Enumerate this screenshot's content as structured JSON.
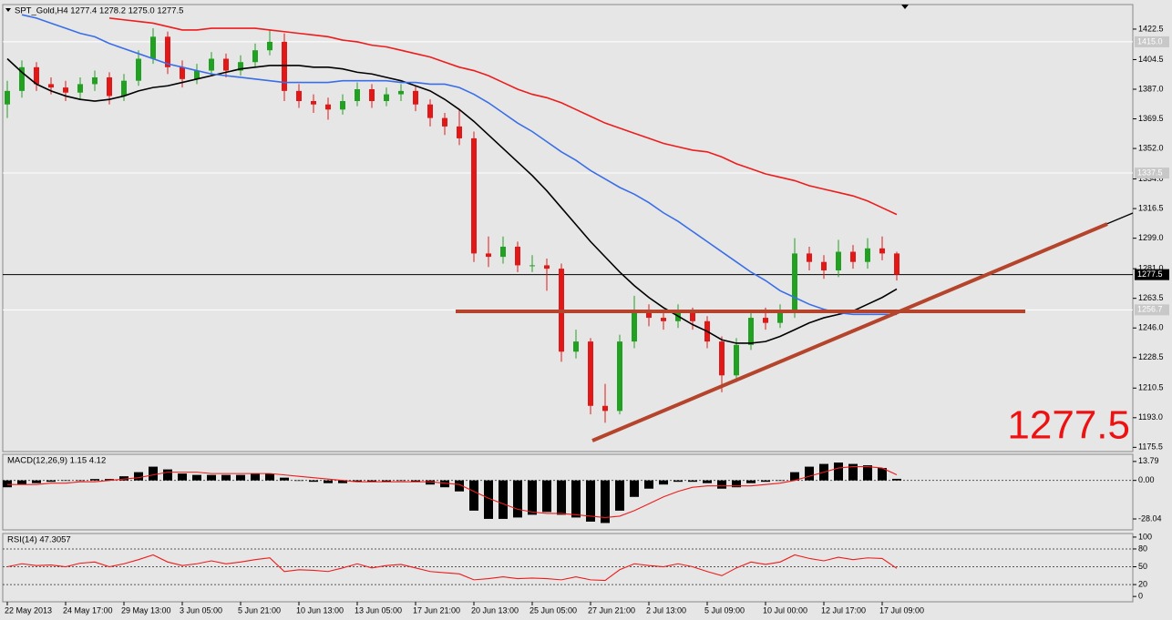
{
  "price_label": "1277.5",
  "chart_data": [
    {
      "type": "candlestick",
      "title": "SPT_Gold,H4  1277.4 1278.2 1275.0 1277.5",
      "categories": [
        "22 May 2013",
        null,
        null,
        null,
        "24 May 17:00",
        null,
        null,
        null,
        "29 May 13:00",
        null,
        null,
        null,
        "3 Jun 05:00",
        null,
        null,
        null,
        "5 Jun 21:00",
        null,
        null,
        null,
        "10 Jun 13:00",
        null,
        null,
        null,
        "13 Jun 05:00",
        null,
        null,
        null,
        "17 Jun 21:00",
        null,
        null,
        null,
        "20 Jun 13:00",
        null,
        null,
        null,
        "25 Jun 05:00",
        null,
        null,
        null,
        "27 Jun 21:00",
        null,
        null,
        null,
        "2 Jul 13:00",
        null,
        null,
        null,
        "5 Jul 09:00",
        null,
        null,
        null,
        "10 Jul 00:00",
        null,
        null,
        null,
        "12 Jul 17:00",
        null,
        null,
        null,
        "17 Jul 09:00",
        null
      ],
      "open": [
        1378,
        1386,
        1400,
        1390,
        1388,
        1385,
        1390,
        1394,
        1383,
        1392,
        1405,
        1418,
        1400,
        1393,
        1398,
        1405,
        1398,
        1403,
        1410,
        1415,
        1386,
        1380,
        1378,
        1375,
        1380,
        1387,
        1380,
        1384,
        1386,
        1378,
        1370,
        1365,
        1358,
        1290,
        1288,
        1294,
        1283,
        1283,
        1281,
        1232,
        1238,
        1200,
        1197,
        1238,
        1256,
        1252,
        1250,
        1255,
        1250,
        1238,
        1218,
        1236,
        1252,
        1249,
        1256,
        1290,
        1285,
        1280,
        1291,
        1285,
        1293,
        1290
      ],
      "high": [
        1392,
        1404,
        1403,
        1394,
        1392,
        1394,
        1398,
        1397,
        1396,
        1410,
        1423,
        1421,
        1404,
        1402,
        1409,
        1408,
        1407,
        1414,
        1422,
        1420,
        1390,
        1384,
        1382,
        1384,
        1391,
        1390,
        1388,
        1390,
        1389,
        1381,
        1373,
        1375,
        1362,
        1300,
        1300,
        1297,
        1289,
        1287,
        1284,
        1245,
        1240,
        1213,
        1242,
        1265,
        1260,
        1257,
        1260,
        1258,
        1253,
        1241,
        1240,
        1255,
        1258,
        1260,
        1299,
        1294,
        1289,
        1298,
        1295,
        1299,
        1300,
        1291
      ],
      "low": [
        1370,
        1382,
        1386,
        1384,
        1380,
        1381,
        1386,
        1378,
        1380,
        1389,
        1402,
        1396,
        1388,
        1390,
        1395,
        1394,
        1395,
        1400,
        1407,
        1380,
        1376,
        1373,
        1369,
        1372,
        1377,
        1376,
        1377,
        1380,
        1374,
        1365,
        1360,
        1354,
        1285,
        1282,
        1284,
        1279,
        1279,
        1268,
        1226,
        1228,
        1195,
        1190,
        1195,
        1234,
        1247,
        1245,
        1246,
        1245,
        1234,
        1208,
        1214,
        1233,
        1245,
        1246,
        1252,
        1280,
        1275,
        1276,
        1281,
        1281,
        1286,
        1274
      ],
      "close": [
        1386,
        1400,
        1390,
        1388,
        1385,
        1390,
        1394,
        1383,
        1392,
        1405,
        1418,
        1400,
        1393,
        1398,
        1405,
        1398,
        1403,
        1410,
        1415,
        1386,
        1380,
        1378,
        1375,
        1380,
        1387,
        1380,
        1384,
        1386,
        1378,
        1370,
        1365,
        1358,
        1290,
        1288,
        1294,
        1283,
        1283,
        1281,
        1232,
        1238,
        1200,
        1197,
        1238,
        1256,
        1252,
        1250,
        1255,
        1250,
        1238,
        1218,
        1236,
        1252,
        1249,
        1256,
        1290,
        1285,
        1280,
        1291,
        1285,
        1293,
        1290,
        1277.5
      ],
      "up_color": "#22a022",
      "down_color": "#e01818",
      "series": [
        {
          "color": "#000000",
          "values": [
            1405,
            1397,
            1390,
            1386,
            1383,
            1381,
            1380,
            1381,
            1383,
            1386,
            1388,
            1389,
            1391,
            1393,
            1395,
            1397,
            1399,
            1400,
            1401,
            1401,
            1401,
            1400,
            1400,
            1399,
            1397,
            1396,
            1394,
            1392,
            1389,
            1386,
            1381,
            1375,
            1368,
            1360,
            1352,
            1344,
            1336,
            1327,
            1317,
            1307,
            1297,
            1288,
            1279,
            1271,
            1264,
            1258,
            1253,
            1248,
            1244,
            1239,
            1237,
            1237,
            1238,
            1241,
            1245,
            1249,
            1252,
            1254,
            1256,
            1260,
            1264,
            1269
          ]
        },
        {
          "color": "#3a6ee8",
          "values": [
            null,
            1431,
            1429,
            1426,
            1423,
            1420,
            1418,
            1414,
            1411,
            1408,
            1405,
            1402,
            1400,
            1398,
            1396,
            1395,
            1394,
            1393,
            1392,
            1391,
            1391,
            1391,
            1391,
            1392,
            1392,
            1392,
            1392,
            1391,
            1391,
            1390,
            1390,
            1388,
            1384,
            1379,
            1373,
            1367,
            1362,
            1356,
            1350,
            1345,
            1339,
            1334,
            1329,
            1325,
            1320,
            1314,
            1309,
            1303,
            1297,
            1291,
            1285,
            1279,
            1274,
            1268,
            1264,
            1260,
            1257,
            1255,
            1254,
            1254,
            1254,
            1254
          ]
        },
        {
          "color": "#ee1c1c",
          "values": [
            null,
            null,
            null,
            null,
            null,
            null,
            null,
            1429,
            1428,
            1427,
            1426,
            1424,
            1422,
            1422,
            1423,
            1423,
            1423,
            1423,
            1422,
            1421,
            1420,
            1419,
            1418,
            1416,
            1415,
            1413,
            1412,
            1410,
            1408,
            1406,
            1403,
            1400,
            1398,
            1395,
            1391,
            1387,
            1384,
            1382,
            1379,
            1375,
            1371,
            1367,
            1364,
            1361,
            1358,
            1355,
            1353,
            1351,
            1350,
            1347,
            1343,
            1340,
            1337,
            1335,
            1333,
            1330,
            1328,
            1326,
            1324,
            1321,
            1317,
            1313
          ]
        }
      ],
      "ylim": [
        1173,
        1437
      ],
      "yticks": [
        1422.5,
        1404.5,
        {
          "value": 1387,
          "label": "1387.0"
        },
        1369.5,
        {
          "value": 1352,
          "label": "1352.0"
        },
        {
          "value": 1334,
          "label": "1334.0"
        },
        1316.5,
        {
          "value": 1299,
          "label": "1299.0"
        },
        {
          "value": 1281,
          "label": "1281.0"
        },
        1263.5,
        {
          "value": 1246,
          "label": "1246.0"
        },
        1228.5,
        1210.5,
        {
          "value": 1193,
          "label": "1193.0"
        },
        1175.5
      ],
      "hlines": [
        {
          "value": 1415,
          "label": "1415.0"
        },
        1337.5,
        1277.5,
        1256.7
      ],
      "hline_colors": [
        "#ffffff",
        "#ffffff",
        "#000000",
        "#ffffff"
      ]
    },
    {
      "type": "bar",
      "title": "MACD(12,26,9) 1.15 4.12",
      "series": [
        {
          "type": "bar",
          "color": "#000000",
          "values": [
            -5,
            -3,
            -2,
            -1,
            0,
            0,
            1,
            1,
            3,
            6,
            10,
            8,
            5,
            4,
            4,
            4,
            4,
            5,
            5,
            2,
            0,
            -1,
            -2,
            -2,
            -1,
            -1,
            -1,
            0,
            -1,
            -3,
            -5,
            -8,
            -22,
            -28,
            -28,
            -27,
            -25,
            -23,
            -25,
            -27,
            -30,
            -31,
            -22,
            -12,
            -6,
            -3,
            -1,
            -1,
            -2,
            -6,
            -5,
            -2,
            -1,
            0,
            6,
            10,
            12,
            13,
            12,
            11,
            9,
            1.15
          ]
        },
        {
          "type": "line",
          "color": "#ee1c1c",
          "values": [
            -3,
            -3,
            -3,
            -2,
            -2,
            -1,
            -1,
            0,
            1,
            2,
            4,
            6,
            6,
            6,
            5,
            5,
            5,
            5,
            5,
            4,
            3,
            2,
            1,
            0,
            -1,
            -1,
            -1,
            -1,
            -1,
            -1,
            -2,
            -3,
            -8,
            -13,
            -17,
            -21,
            -23,
            -24,
            -24,
            -25,
            -26,
            -27,
            -26,
            -22,
            -17,
            -12,
            -8,
            -5,
            -4,
            -4,
            -4,
            -4,
            -3,
            -2,
            0,
            3,
            6,
            9,
            10,
            10,
            9,
            4.12
          ]
        }
      ],
      "ylim": [
        -36,
        19
      ],
      "yticks": [
        13.79,
        {
          "value": 0,
          "label": "0.00"
        },
        -28.04
      ],
      "levels": [
        0
      ]
    },
    {
      "type": "line",
      "title": "RSI(14) 47.3057",
      "series": [
        {
          "color": "#ee1c1c",
          "values": [
            50,
            55,
            52,
            53,
            50,
            56,
            58,
            50,
            55,
            62,
            70,
            58,
            52,
            55,
            60,
            55,
            58,
            62,
            65,
            42,
            45,
            44,
            42,
            48,
            55,
            48,
            52,
            54,
            48,
            42,
            40,
            38,
            28,
            30,
            33,
            30,
            31,
            30,
            28,
            33,
            28,
            27,
            45,
            55,
            52,
            50,
            55,
            50,
            42,
            35,
            48,
            58,
            54,
            58,
            70,
            64,
            60,
            66,
            62,
            65,
            64,
            47.3057
          ]
        }
      ],
      "ylim": [
        -9,
        106
      ],
      "yticks": [
        100,
        80,
        50,
        20,
        0
      ],
      "levels": [
        80,
        50,
        20
      ]
    }
  ]
}
